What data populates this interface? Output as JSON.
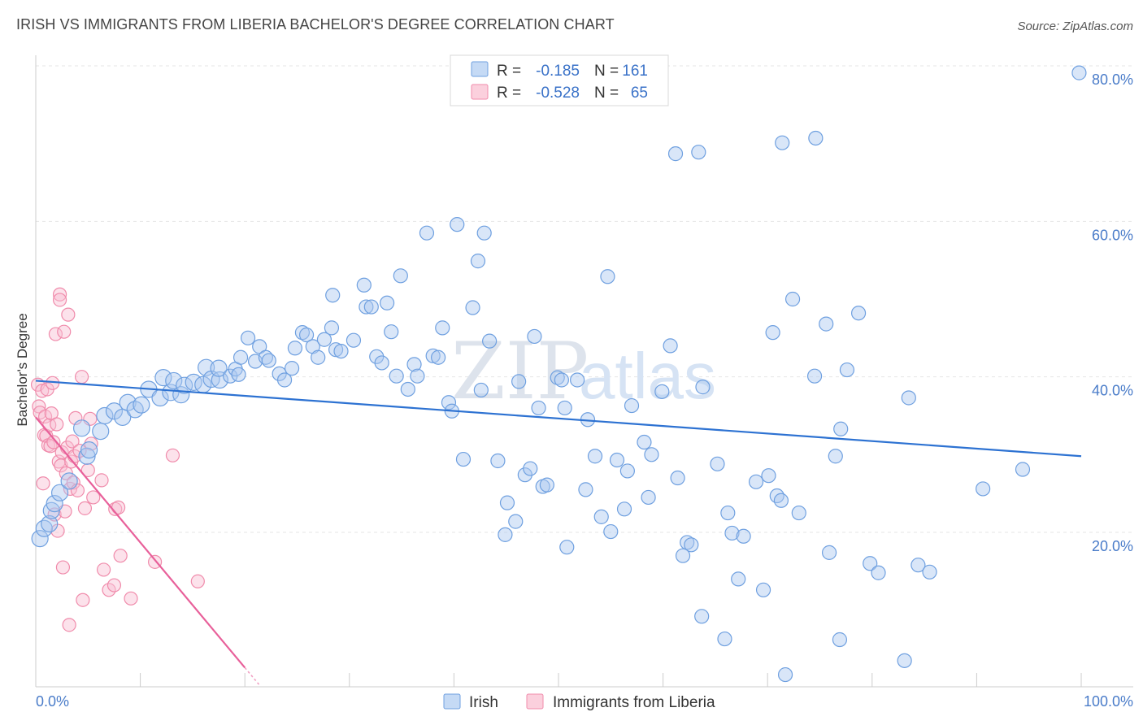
{
  "title": "IRISH VS IMMIGRANTS FROM LIBERIA BACHELOR'S DEGREE CORRELATION CHART",
  "source": "Source: ZipAtlas.com",
  "watermark": {
    "zip": "ZIP",
    "atlas": "atlas"
  },
  "legend_top": {
    "rows": [
      {
        "r_label": "R =",
        "r_value": "-0.185",
        "n_label": "N =",
        "n_value": "161"
      },
      {
        "r_label": "R =",
        "r_value": "-0.528",
        "n_label": "N =",
        "n_value": "65"
      }
    ]
  },
  "chart_data": {
    "type": "scatter",
    "title": "IRISH VS IMMIGRANTS FROM LIBERIA BACHELOR'S DEGREE CORRELATION CHART",
    "xlabel": "",
    "ylabel": "Bachelor's Degree",
    "xlim": [
      0,
      100
    ],
    "ylim": [
      0,
      82
    ],
    "x_tick_labels": [
      "0.0%",
      "100.0%"
    ],
    "y_tick_labels": [
      "20.0%",
      "40.0%",
      "60.0%",
      "80.0%"
    ],
    "y_tick_values": [
      20,
      40,
      60,
      80
    ],
    "grid": true,
    "legend_position": "bottom",
    "colors": {
      "irish": "#6fa0e0",
      "liberia": "#f08bab",
      "irish_line": "#2d72d2",
      "liberia_line": "#e8609a"
    },
    "series": [
      {
        "name": "Irish",
        "trend": {
          "x": [
            0,
            100
          ],
          "y": [
            39.5,
            29.8
          ]
        },
        "points": [
          [
            0.4,
            19.2
          ],
          [
            0.8,
            20.5
          ],
          [
            1.3,
            21.1
          ],
          [
            1.5,
            22.8
          ],
          [
            1.8,
            23.7
          ],
          [
            2.3,
            25.1
          ],
          [
            3.2,
            26.6
          ],
          [
            4.9,
            29.8
          ],
          [
            5.1,
            30.6
          ],
          [
            4.4,
            33.4
          ],
          [
            6.2,
            33.0
          ],
          [
            6.6,
            35.0
          ],
          [
            7.5,
            35.6
          ],
          [
            8.3,
            34.8
          ],
          [
            8.8,
            36.7
          ],
          [
            9.5,
            35.8
          ],
          [
            10.1,
            36.4
          ],
          [
            10.8,
            38.4
          ],
          [
            11.9,
            37.3
          ],
          [
            12.2,
            39.9
          ],
          [
            12.9,
            38.0
          ],
          [
            13.2,
            39.5
          ],
          [
            13.9,
            37.7
          ],
          [
            14.2,
            38.9
          ],
          [
            15.1,
            39.3
          ],
          [
            16.0,
            39.0
          ],
          [
            16.3,
            41.2
          ],
          [
            16.8,
            39.7
          ],
          [
            17.6,
            39.6
          ],
          [
            17.5,
            41.1
          ],
          [
            18.6,
            40.1
          ],
          [
            19.1,
            41.0
          ],
          [
            19.4,
            40.3
          ],
          [
            19.6,
            42.5
          ],
          [
            20.3,
            45.0
          ],
          [
            21.0,
            42.0
          ],
          [
            21.4,
            43.9
          ],
          [
            22.0,
            42.5
          ],
          [
            22.3,
            42.1
          ],
          [
            23.3,
            40.4
          ],
          [
            23.8,
            39.6
          ],
          [
            24.5,
            41.1
          ],
          [
            24.8,
            43.7
          ],
          [
            25.5,
            45.7
          ],
          [
            25.9,
            45.4
          ],
          [
            26.5,
            43.9
          ],
          [
            27.0,
            42.5
          ],
          [
            27.6,
            44.8
          ],
          [
            28.3,
            46.3
          ],
          [
            28.7,
            43.5
          ],
          [
            29.2,
            43.3
          ],
          [
            28.4,
            50.5
          ],
          [
            30.4,
            44.7
          ],
          [
            31.4,
            51.8
          ],
          [
            31.6,
            49.0
          ],
          [
            32.1,
            49.0
          ],
          [
            32.6,
            42.6
          ],
          [
            33.1,
            41.8
          ],
          [
            33.6,
            49.5
          ],
          [
            34.0,
            45.8
          ],
          [
            34.5,
            40.1
          ],
          [
            34.9,
            53.0
          ],
          [
            35.6,
            38.4
          ],
          [
            36.2,
            41.6
          ],
          [
            36.5,
            40.1
          ],
          [
            37.4,
            58.5
          ],
          [
            38.0,
            42.7
          ],
          [
            38.5,
            42.5
          ],
          [
            38.9,
            46.3
          ],
          [
            39.5,
            36.7
          ],
          [
            39.8,
            35.6
          ],
          [
            40.3,
            59.6
          ],
          [
            40.9,
            29.4
          ],
          [
            41.8,
            48.9
          ],
          [
            42.3,
            54.9
          ],
          [
            42.6,
            38.3
          ],
          [
            42.9,
            58.5
          ],
          [
            43.4,
            44.6
          ],
          [
            44.2,
            29.2
          ],
          [
            44.9,
            19.7
          ],
          [
            45.1,
            23.8
          ],
          [
            45.9,
            21.4
          ],
          [
            46.2,
            39.4
          ],
          [
            46.8,
            27.4
          ],
          [
            47.3,
            28.2
          ],
          [
            47.7,
            45.2
          ],
          [
            48.1,
            36.0
          ],
          [
            48.5,
            25.9
          ],
          [
            48.9,
            26.1
          ],
          [
            49.9,
            39.9
          ],
          [
            50.3,
            39.6
          ],
          [
            50.6,
            36.0
          ],
          [
            50.8,
            18.1
          ],
          [
            51.8,
            39.6
          ],
          [
            52.6,
            25.5
          ],
          [
            52.8,
            34.5
          ],
          [
            53.5,
            29.8
          ],
          [
            54.1,
            22.0
          ],
          [
            54.7,
            52.9
          ],
          [
            55.0,
            20.1
          ],
          [
            55.6,
            29.3
          ],
          [
            56.3,
            23.0
          ],
          [
            56.6,
            27.9
          ],
          [
            57.0,
            36.3
          ],
          [
            58.2,
            31.6
          ],
          [
            58.6,
            24.5
          ],
          [
            58.9,
            30.0
          ],
          [
            59.9,
            38.1
          ],
          [
            60.7,
            44.0
          ],
          [
            61.2,
            68.7
          ],
          [
            61.4,
            27.0
          ],
          [
            61.9,
            17.0
          ],
          [
            62.3,
            18.7
          ],
          [
            62.7,
            18.4
          ],
          [
            63.4,
            68.9
          ],
          [
            63.8,
            38.7
          ],
          [
            63.7,
            9.2
          ],
          [
            65.2,
            28.8
          ],
          [
            65.9,
            6.3
          ],
          [
            66.2,
            22.5
          ],
          [
            66.6,
            19.9
          ],
          [
            67.2,
            14.0
          ],
          [
            67.7,
            19.5
          ],
          [
            68.9,
            26.5
          ],
          [
            69.6,
            12.6
          ],
          [
            70.1,
            27.3
          ],
          [
            70.5,
            45.7
          ],
          [
            70.9,
            24.7
          ],
          [
            71.3,
            24.1
          ],
          [
            71.4,
            70.1
          ],
          [
            71.7,
            1.7
          ],
          [
            72.4,
            50.0
          ],
          [
            73.0,
            22.5
          ],
          [
            74.5,
            40.1
          ],
          [
            74.6,
            70.7
          ],
          [
            75.6,
            46.8
          ],
          [
            75.9,
            17.4
          ],
          [
            76.5,
            29.8
          ],
          [
            76.9,
            6.2
          ],
          [
            77.0,
            33.3
          ],
          [
            77.6,
            40.9
          ],
          [
            78.7,
            48.2
          ],
          [
            79.8,
            16.0
          ],
          [
            80.6,
            14.8
          ],
          [
            83.1,
            3.5
          ],
          [
            83.5,
            37.3
          ],
          [
            84.4,
            15.8
          ],
          [
            85.5,
            14.9
          ],
          [
            90.6,
            25.6
          ],
          [
            94.4,
            28.1
          ],
          [
            99.8,
            79.1
          ]
        ]
      },
      {
        "name": "Immigrants from Liberia",
        "trend": {
          "x": [
            0,
            20
          ],
          "y": [
            34.8,
            2.6
          ]
        },
        "points": [
          [
            0.2,
            39.0
          ],
          [
            0.3,
            36.2
          ],
          [
            0.4,
            35.4
          ],
          [
            0.6,
            38.2
          ],
          [
            0.7,
            26.3
          ],
          [
            0.8,
            32.5
          ],
          [
            0.9,
            34.9
          ],
          [
            1.0,
            32.4
          ],
          [
            1.1,
            38.4
          ],
          [
            1.2,
            31.2
          ],
          [
            1.3,
            33.8
          ],
          [
            1.4,
            31.1
          ],
          [
            1.5,
            35.3
          ],
          [
            1.6,
            39.2
          ],
          [
            1.7,
            31.6
          ],
          [
            1.8,
            22.3
          ],
          [
            1.9,
            45.5
          ],
          [
            2.0,
            33.9
          ],
          [
            2.1,
            20.2
          ],
          [
            2.2,
            29.1
          ],
          [
            2.3,
            50.6
          ],
          [
            2.3,
            49.9
          ],
          [
            2.4,
            28.6
          ],
          [
            2.5,
            30.3
          ],
          [
            2.6,
            15.5
          ],
          [
            2.7,
            45.8
          ],
          [
            2.8,
            22.7
          ],
          [
            2.9,
            27.6
          ],
          [
            3.0,
            30.9
          ],
          [
            3.1,
            48.0
          ],
          [
            3.2,
            8.1
          ],
          [
            3.3,
            25.6
          ],
          [
            3.4,
            29.1
          ],
          [
            3.5,
            31.7
          ],
          [
            3.6,
            26.4
          ],
          [
            3.7,
            29.8
          ],
          [
            3.8,
            34.7
          ],
          [
            4.0,
            25.4
          ],
          [
            4.2,
            30.5
          ],
          [
            4.4,
            40.0
          ],
          [
            4.5,
            11.3
          ],
          [
            4.7,
            23.1
          ],
          [
            5.0,
            28.0
          ],
          [
            5.2,
            34.6
          ],
          [
            5.3,
            31.4
          ],
          [
            5.5,
            24.5
          ],
          [
            6.3,
            26.7
          ],
          [
            6.5,
            15.2
          ],
          [
            7.0,
            12.6
          ],
          [
            7.5,
            13.2
          ],
          [
            7.6,
            23.0
          ],
          [
            7.9,
            23.2
          ],
          [
            8.1,
            17.0
          ],
          [
            9.1,
            11.5
          ],
          [
            11.4,
            16.2
          ],
          [
            13.1,
            29.9
          ],
          [
            15.5,
            13.7
          ]
        ]
      }
    ]
  },
  "axis": {
    "x_left_label": "0.0%",
    "x_right_label": "100.0%",
    "y_labels": [
      "20.0%",
      "40.0%",
      "60.0%",
      "80.0%"
    ],
    "y_title": "Bachelor's Degree"
  },
  "legend_bottom": {
    "irish": "Irish",
    "liberia": "Immigrants from Liberia"
  }
}
